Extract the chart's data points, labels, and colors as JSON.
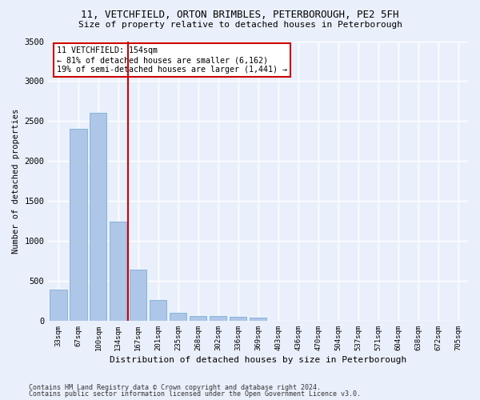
{
  "title_line1": "11, VETCHFIELD, ORTON BRIMBLES, PETERBOROUGH, PE2 5FH",
  "title_line2": "Size of property relative to detached houses in Peterborough",
  "xlabel": "Distribution of detached houses by size in Peterborough",
  "ylabel": "Number of detached properties",
  "categories": [
    "33sqm",
    "67sqm",
    "100sqm",
    "134sqm",
    "167sqm",
    "201sqm",
    "235sqm",
    "268sqm",
    "302sqm",
    "336sqm",
    "369sqm",
    "403sqm",
    "436sqm",
    "470sqm",
    "504sqm",
    "537sqm",
    "571sqm",
    "604sqm",
    "638sqm",
    "672sqm",
    "705sqm"
  ],
  "values": [
    390,
    2400,
    2600,
    1240,
    640,
    260,
    100,
    60,
    55,
    45,
    35,
    0,
    0,
    0,
    0,
    0,
    0,
    0,
    0,
    0,
    0
  ],
  "bar_color": "#aec6e8",
  "bar_edge_color": "#7bafd4",
  "vline_x": 3.5,
  "vline_color": "#cc0000",
  "annotation_text": "11 VETCHFIELD: 154sqm\n← 81% of detached houses are smaller (6,162)\n19% of semi-detached houses are larger (1,441) →",
  "annotation_box_color": "#ffffff",
  "annotation_box_edge_color": "#cc0000",
  "ylim": [
    0,
    3500
  ],
  "yticks": [
    0,
    500,
    1000,
    1500,
    2000,
    2500,
    3000,
    3500
  ],
  "bg_color": "#eaf0fb",
  "grid_color": "#ffffff",
  "footer_line1": "Contains HM Land Registry data © Crown copyright and database right 2024.",
  "footer_line2": "Contains public sector information licensed under the Open Government Licence v3.0."
}
